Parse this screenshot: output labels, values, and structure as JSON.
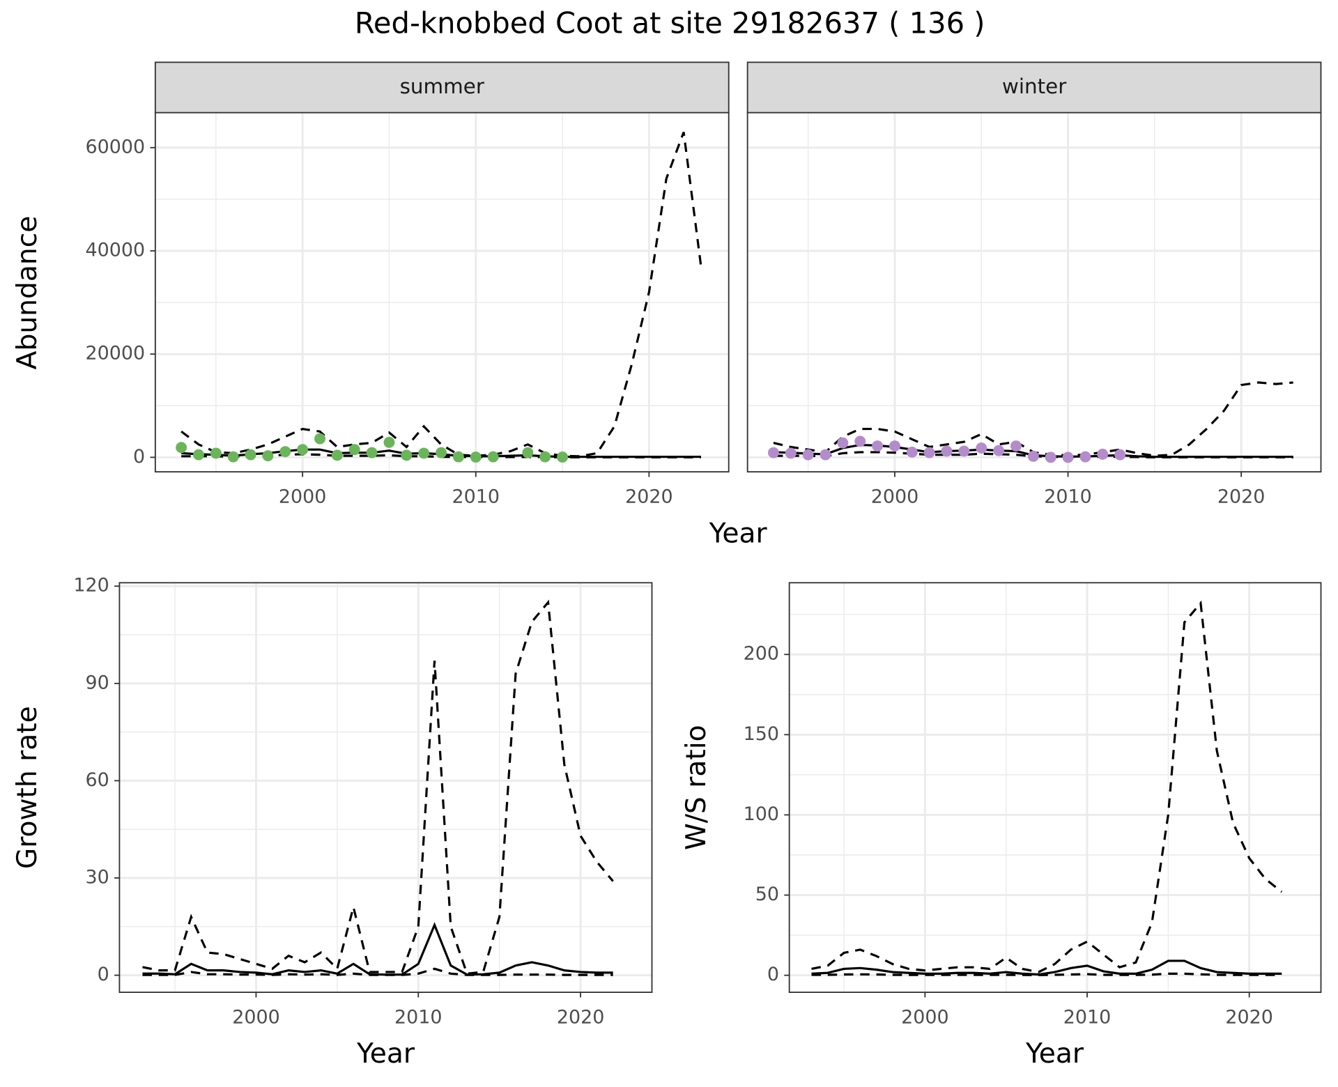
{
  "title": "Red-knobbed Coot at site 29182637 ( 136 )",
  "chart_data": [
    {
      "type": "line",
      "facet": "summer",
      "x_label": "Year",
      "y_label": "Abundance",
      "x": [
        1993,
        1994,
        1995,
        1996,
        1997,
        1998,
        1999,
        2000,
        2001,
        2002,
        2003,
        2004,
        2005,
        2006,
        2007,
        2008,
        2009,
        2010,
        2011,
        2012,
        2013,
        2014,
        2015,
        2016,
        2017,
        2018,
        2019,
        2020,
        2021,
        2022,
        2023
      ],
      "xlim": [
        1991.5,
        2024.6
      ],
      "xticks": [
        2000,
        2010,
        2020
      ],
      "x_minor_grid": [
        1995,
        2005,
        2015
      ],
      "ylim": [
        -2810,
        66780
      ],
      "yticks": [
        0,
        20000,
        40000,
        60000
      ],
      "y_minor_grid": [
        10000,
        30000,
        50000
      ],
      "show_y_tick_labels": true,
      "grid": true,
      "series": [
        {
          "style": "dashed",
          "color": "#000000",
          "values": [
            5000,
            2500,
            1000,
            800,
            1500,
            2500,
            4000,
            5500,
            5000,
            2000,
            2500,
            2800,
            4800,
            2000,
            6000,
            2500,
            500,
            300,
            500,
            1200,
            2500,
            800,
            300,
            200,
            800,
            6000,
            18000,
            32000,
            54000,
            63000,
            37000
          ]
        },
        {
          "style": "solid",
          "color": "#000000",
          "values": [
            800,
            600,
            500,
            300,
            600,
            800,
            1200,
            1500,
            1500,
            800,
            900,
            900,
            1300,
            700,
            800,
            600,
            300,
            200,
            200,
            300,
            400,
            200,
            100,
            100,
            100,
            100,
            100,
            100,
            100,
            100,
            100
          ]
        },
        {
          "style": "dashed",
          "color": "#000000",
          "values": [
            200,
            200,
            200,
            100,
            200,
            300,
            500,
            600,
            500,
            300,
            300,
            300,
            400,
            200,
            200,
            100,
            50,
            50,
            50,
            50,
            50,
            50,
            0,
            0,
            0,
            0,
            0,
            0,
            0,
            0,
            0
          ]
        },
        {
          "style": "points",
          "color": "#6ab55a",
          "values": [
            1900,
            500,
            800,
            100,
            500,
            300,
            1100,
            1500,
            3600,
            400,
            1500,
            900,
            2900,
            400,
            800,
            900,
            100,
            50,
            100,
            null,
            900,
            100,
            50,
            null,
            null,
            null,
            null,
            null,
            null,
            null,
            null
          ]
        }
      ]
    },
    {
      "type": "line",
      "facet": "winter",
      "x": [
        1993,
        1994,
        1995,
        1996,
        1997,
        1998,
        1999,
        2000,
        2001,
        2002,
        2003,
        2004,
        2005,
        2006,
        2007,
        2008,
        2009,
        2010,
        2011,
        2012,
        2013,
        2014,
        2015,
        2016,
        2017,
        2018,
        2019,
        2020,
        2021,
        2022,
        2023
      ],
      "xlim": [
        1991.5,
        2024.6
      ],
      "xticks": [
        2000,
        2010,
        2020
      ],
      "x_minor_grid": [
        1995,
        2005,
        2015
      ],
      "ylim": [
        -2810,
        66780
      ],
      "yticks": [
        0,
        20000,
        40000,
        60000
      ],
      "y_minor_grid": [
        10000,
        30000,
        50000
      ],
      "show_y_tick_labels": false,
      "grid": true,
      "series": [
        {
          "style": "dashed",
          "color": "#000000",
          "values": [
            2800,
            2000,
            1500,
            1000,
            4000,
            5500,
            5500,
            5000,
            3500,
            2000,
            2500,
            3000,
            4500,
            2500,
            3000,
            1000,
            500,
            400,
            500,
            1000,
            1500,
            800,
            300,
            500,
            2500,
            5500,
            9000,
            14000,
            14500,
            14200,
            14500
          ]
        },
        {
          "style": "solid",
          "color": "#000000",
          "values": [
            1000,
            900,
            700,
            600,
            1800,
            2400,
            2300,
            2000,
            1500,
            1000,
            1200,
            1300,
            1500,
            1300,
            1200,
            400,
            200,
            150,
            150,
            300,
            400,
            200,
            100,
            100,
            100,
            100,
            100,
            100,
            100,
            100,
            100
          ]
        },
        {
          "style": "dashed",
          "color": "#000000",
          "values": [
            300,
            300,
            300,
            200,
            800,
            1000,
            1000,
            900,
            700,
            500,
            500,
            500,
            700,
            600,
            500,
            200,
            100,
            50,
            50,
            100,
            100,
            50,
            0,
            0,
            0,
            0,
            0,
            0,
            0,
            0,
            0
          ]
        },
        {
          "style": "points",
          "color": "#b48ccc",
          "values": [
            900,
            800,
            500,
            500,
            2800,
            3100,
            2200,
            2200,
            1000,
            900,
            1200,
            1200,
            1800,
            1300,
            2200,
            200,
            0,
            0,
            100,
            600,
            500,
            null,
            null,
            null,
            null,
            null,
            null,
            null,
            null,
            null,
            null
          ]
        }
      ]
    },
    {
      "type": "line",
      "x_label": "Year",
      "y_label": "Growth rate",
      "x": [
        1993,
        1994,
        1995,
        1996,
        1997,
        1998,
        1999,
        2000,
        2001,
        2002,
        2003,
        2004,
        2005,
        2006,
        2007,
        2008,
        2009,
        2010,
        2011,
        2012,
        2013,
        2014,
        2015,
        2016,
        2017,
        2018,
        2019,
        2020,
        2021,
        2022
      ],
      "xlim": [
        1991.58,
        2024.4
      ],
      "xticks": [
        2000,
        2010,
        2020
      ],
      "x_minor_grid": [
        1995,
        2005,
        2015
      ],
      "ylim": [
        -5.26,
        121.05
      ],
      "yticks": [
        0,
        30,
        60,
        90,
        120
      ],
      "y_minor_grid": [
        15,
        45,
        75,
        105
      ],
      "show_y_tick_labels": true,
      "grid": true,
      "series": [
        {
          "style": "dashed",
          "color": "#000000",
          "values": [
            2.5,
            1.5,
            1.5,
            18,
            7,
            6.5,
            5,
            3.5,
            2,
            6,
            4,
            7,
            2,
            21,
            1,
            1,
            1,
            15,
            97,
            15,
            0.5,
            1,
            18,
            93,
            109,
            115,
            65,
            43,
            35,
            29
          ]
        },
        {
          "style": "solid",
          "color": "#000000",
          "values": [
            0.5,
            0.5,
            0.3,
            3.5,
            1.5,
            1.5,
            1,
            0.8,
            0.3,
            1.5,
            1,
            1.5,
            0.5,
            3.5,
            0.3,
            0.2,
            0.2,
            3.5,
            15.5,
            3,
            0.2,
            0.3,
            0.8,
            3,
            4,
            3,
            1.5,
            1,
            0.8,
            0.8
          ]
        },
        {
          "style": "dashed",
          "color": "#000000",
          "values": [
            0.1,
            0.1,
            0.1,
            1,
            0.3,
            0.3,
            0.2,
            0.2,
            0.1,
            0.3,
            0.2,
            0.3,
            0.1,
            0.5,
            0.1,
            0.1,
            0.1,
            0.5,
            2,
            0.5,
            0.1,
            0.1,
            0.1,
            0.2,
            0.2,
            0.2,
            0.1,
            0.1,
            0.1,
            0.1
          ]
        }
      ]
    },
    {
      "type": "line",
      "x_label": "Year",
      "y_label": "W/S ratio",
      "x": [
        1993,
        1994,
        1995,
        1996,
        1997,
        1998,
        1999,
        2000,
        2001,
        2002,
        2003,
        2004,
        2005,
        2006,
        2007,
        2008,
        2009,
        2010,
        2011,
        2012,
        2013,
        2014,
        2015,
        2016,
        2017,
        2018,
        2019,
        2020,
        2021,
        2022
      ],
      "xlim": [
        1991.63,
        2024.42
      ],
      "xticks": [
        2000,
        2010,
        2020
      ],
      "x_minor_grid": [
        1995,
        2005,
        2015
      ],
      "ylim": [
        -10.6,
        244.7
      ],
      "yticks": [
        0,
        50,
        100,
        150,
        200
      ],
      "y_minor_grid": [
        25,
        75,
        125,
        175,
        225
      ],
      "show_y_tick_labels": true,
      "grid": true,
      "series": [
        {
          "style": "dashed",
          "color": "#000000",
          "values": [
            4,
            6,
            14,
            16,
            12,
            7,
            4,
            3,
            4,
            5,
            5,
            4,
            11,
            4,
            2,
            7,
            16,
            21,
            13,
            5,
            8,
            33,
            100,
            220,
            232,
            140,
            95,
            73,
            60,
            52
          ]
        },
        {
          "style": "solid",
          "color": "#000000",
          "values": [
            1,
            1.5,
            4,
            4.5,
            3.5,
            2,
            1.5,
            1,
            1,
            1.5,
            1.5,
            1,
            2,
            1,
            0.5,
            2,
            4.5,
            6,
            2.5,
            1,
            1,
            3.5,
            9,
            9,
            4.5,
            2,
            1.5,
            1,
            1,
            1
          ]
        },
        {
          "style": "dashed",
          "color": "#000000",
          "values": [
            0.3,
            0.3,
            0.5,
            0.6,
            0.5,
            0.3,
            0.2,
            0.2,
            0.2,
            0.3,
            0.3,
            0.2,
            0.3,
            0.2,
            0.1,
            0.3,
            0.5,
            0.7,
            0.3,
            0.2,
            0.2,
            0.4,
            1,
            1,
            0.6,
            0.3,
            0.2,
            0.2,
            0.2,
            0.2
          ]
        }
      ]
    }
  ]
}
